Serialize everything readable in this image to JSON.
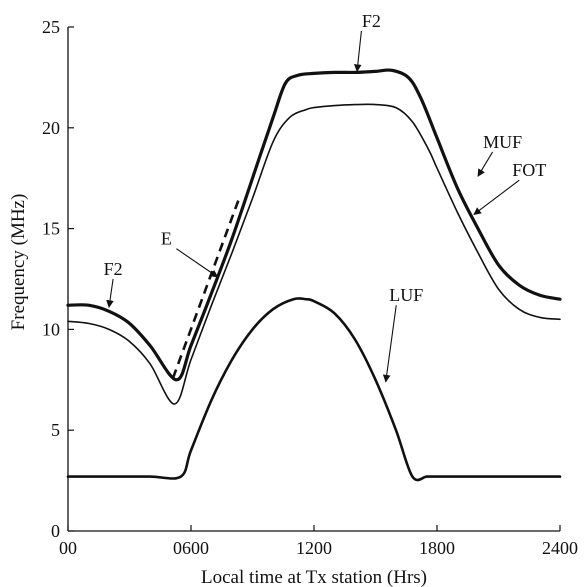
{
  "chart_data": {
    "type": "line",
    "title": "",
    "xlabel": "Local time at Tx station (Hrs)",
    "ylabel": "Frequency (MHz)",
    "xlim": [
      0,
      24
    ],
    "ylim": [
      0,
      25
    ],
    "grid": false,
    "x_ticks": [
      {
        "value": 0,
        "label": "00"
      },
      {
        "value": 6,
        "label": "0600"
      },
      {
        "value": 12,
        "label": "1200"
      },
      {
        "value": 18,
        "label": "1800"
      },
      {
        "value": 24,
        "label": "2400"
      }
    ],
    "y_ticks": [
      {
        "value": 0,
        "label": "0"
      },
      {
        "value": 5,
        "label": "5"
      },
      {
        "value": 10,
        "label": "10"
      },
      {
        "value": 15,
        "label": "15"
      },
      {
        "value": 20,
        "label": "20"
      },
      {
        "value": 25,
        "label": "25"
      }
    ],
    "series": [
      {
        "name": "MUF",
        "color": "#111111",
        "weight": "thick",
        "x": [
          0,
          1,
          2,
          3,
          4,
          5.3,
          6,
          7,
          8,
          9,
          10,
          10.6,
          11.2,
          12,
          13,
          14,
          15,
          15.8,
          16.6,
          17.2,
          18,
          19,
          20,
          21,
          22,
          23,
          24
        ],
        "y": [
          11.2,
          11.2,
          10.9,
          10.3,
          9.2,
          7.5,
          9.2,
          11.8,
          14.5,
          17.5,
          20.5,
          22.2,
          22.6,
          22.7,
          22.75,
          22.75,
          22.8,
          22.85,
          22.5,
          21.5,
          19.5,
          17.0,
          15.0,
          13.2,
          12.2,
          11.7,
          11.5
        ]
      },
      {
        "name": "FOT",
        "color": "#111111",
        "weight": "thin",
        "x": [
          0,
          1,
          2,
          3,
          4,
          5.2,
          6,
          7,
          8,
          9,
          10,
          10.8,
          11.6,
          12,
          13,
          14,
          15,
          16,
          16.8,
          17.6,
          18,
          19,
          20,
          21,
          22,
          23,
          24
        ],
        "y": [
          10.4,
          10.3,
          10.0,
          9.4,
          8.3,
          6.3,
          8.5,
          11.2,
          13.8,
          16.5,
          19.3,
          20.5,
          20.9,
          21.0,
          21.1,
          21.15,
          21.15,
          21.0,
          20.3,
          18.9,
          18.0,
          15.8,
          13.8,
          12.0,
          11.0,
          10.6,
          10.5
        ]
      },
      {
        "name": "LUF",
        "color": "#111111",
        "weight": "medium",
        "x": [
          0,
          2,
          4,
          5.5,
          6,
          7,
          8,
          9,
          10,
          11,
          11.6,
          12,
          13,
          14,
          15,
          16,
          16.8,
          17.5,
          18,
          20,
          22,
          24
        ],
        "y": [
          2.7,
          2.7,
          2.7,
          2.7,
          4.0,
          6.5,
          8.5,
          10.0,
          11.0,
          11.5,
          11.5,
          11.4,
          10.8,
          9.5,
          7.5,
          5.0,
          2.7,
          2.7,
          2.7,
          2.7,
          2.7,
          2.7
        ]
      }
    ],
    "annotations": [
      {
        "text": "F2",
        "tx": 2.2,
        "ty": 12.7,
        "ax": 2.0,
        "ay": 11.1
      },
      {
        "text": "E",
        "tx": 4.8,
        "ty": 14.2,
        "ax": 7.3,
        "ay": 12.6
      },
      {
        "text": "F2",
        "tx": 14.8,
        "ty": 25.0,
        "ax": 14.1,
        "ay": 22.8
      },
      {
        "text": "MUF",
        "tx": 21.2,
        "ty": 19.0,
        "ax": 20.0,
        "ay": 17.6
      },
      {
        "text": "FOT",
        "tx": 22.5,
        "ty": 17.6,
        "ax": 19.8,
        "ay": 15.7
      },
      {
        "text": "LUF",
        "tx": 16.5,
        "ty": 11.4,
        "ax": 15.5,
        "ay": 7.4
      }
    ]
  }
}
